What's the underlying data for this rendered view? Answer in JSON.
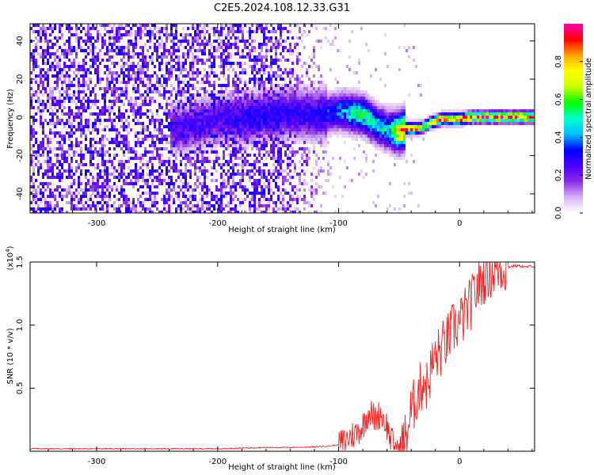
{
  "title": "C2E5.2024.108.12.33.G31",
  "chart_data": [
    {
      "type": "heatmap",
      "title": "C2E5.2024.108.12.33.G31",
      "xlabel": "Height of straight line (km)",
      "ylabel": "Frequency (Hz)",
      "xlim": [
        -355,
        62
      ],
      "ylim": [
        -50,
        49
      ],
      "xticks": [
        -300,
        -200,
        -100,
        0
      ],
      "xtick_labels": [
        "-300",
        "-200",
        "-100",
        "0"
      ],
      "yticks": [
        -40,
        -20,
        0,
        20,
        40
      ],
      "ytick_labels": [
        "-40",
        "-20",
        "0",
        "20",
        "40"
      ],
      "colorbar": {
        "label": "Normalized spectral amplitude",
        "ticks": [
          0.0,
          0.2,
          0.4,
          0.6,
          0.8
        ],
        "tick_labels": [
          "0.0",
          "0.2",
          "0.4",
          "0.6",
          "0.8"
        ],
        "range": [
          0,
          1
        ],
        "colormap": [
          "#ffffff",
          "#d8b4f8",
          "#8a2be2",
          "#4b00ff",
          "#0000ff",
          "#00bfff",
          "#00ffd0",
          "#00ff00",
          "#c8ff00",
          "#ffff00",
          "#ffa500",
          "#ff0000",
          "#ff00aa"
        ]
      },
      "trace": {
        "x": [
          -230,
          -200,
          -180,
          -160,
          -140,
          -120,
          -110,
          -100,
          -90,
          -80,
          -70,
          -60,
          -50,
          -45,
          -40,
          -35,
          -30,
          -25,
          -20,
          -15,
          -10,
          -5,
          0,
          10,
          20,
          30,
          40,
          50,
          60
        ],
        "y_hz": [
          -5,
          0,
          0,
          2,
          3,
          2,
          3,
          4,
          3,
          2,
          -3,
          -6,
          -7,
          -5,
          -5,
          -5,
          -4,
          -2,
          -1,
          0,
          0,
          0,
          0,
          1,
          1,
          1,
          1,
          1,
          1
        ],
        "amplitude": [
          0.25,
          0.25,
          0.3,
          0.3,
          0.3,
          0.3,
          0.35,
          0.4,
          0.5,
          0.55,
          0.5,
          0.45,
          0.85,
          0.9,
          0.9,
          0.8,
          0.7,
          0.75,
          0.85,
          0.9,
          0.9,
          0.85,
          0.9,
          0.9,
          0.92,
          0.9,
          0.9,
          0.92,
          0.9
        ]
      },
      "noise_floor": {
        "x_range": [
          -355,
          -105
        ],
        "amplitude": 0.3
      }
    },
    {
      "type": "line",
      "xlabel": "Height of straight line (km)",
      "ylabel": "SNR (10 * v/v)",
      "y_multiplier": "(x10^4)",
      "xlim": [
        -355,
        62
      ],
      "ylim": [
        0,
        1.5
      ],
      "xticks": [
        -300,
        -200,
        -100,
        0
      ],
      "xtick_labels": [
        "-300",
        "-200",
        "-100",
        "0"
      ],
      "yticks": [
        0.5,
        1.0,
        1.5
      ],
      "ytick_labels": [
        "0.5",
        "1.0",
        "1.5"
      ],
      "line_color": "#ee2222",
      "series": [
        {
          "x": [
            -355,
            -340,
            -320,
            -300,
            -280,
            -260,
            -240,
            -220,
            -200,
            -180,
            -160,
            -140,
            -120,
            -110,
            -100,
            -95,
            -90,
            -85,
            -80,
            -75,
            -70,
            -65,
            -60,
            -57,
            -55,
            -52,
            -50,
            -47,
            -45,
            -42,
            -40,
            -37,
            -35,
            -32,
            -30,
            -27,
            -25,
            -22,
            -20,
            -17,
            -15,
            -12,
            -10,
            -7,
            -5,
            -2,
            0,
            3,
            5,
            8,
            10,
            12,
            15,
            18,
            20,
            22,
            25,
            28,
            30,
            33,
            36,
            40,
            45,
            50,
            55,
            60,
            62
          ],
          "y": [
            0.02,
            0.02,
            0.02,
            0.02,
            0.02,
            0.02,
            0.02,
            0.02,
            0.02,
            0.025,
            0.03,
            0.03,
            0.035,
            0.04,
            0.05,
            0.08,
            0.12,
            0.15,
            0.2,
            0.32,
            0.26,
            0.3,
            0.2,
            0.1,
            0.06,
            0.04,
            0.03,
            0.06,
            0.1,
            0.22,
            0.32,
            0.38,
            0.46,
            0.5,
            0.58,
            0.52,
            0.6,
            0.7,
            0.74,
            0.78,
            0.8,
            0.86,
            0.88,
            0.94,
            0.98,
            1.0,
            1.02,
            1.06,
            1.1,
            1.15,
            1.18,
            1.24,
            1.3,
            1.34,
            1.38,
            1.4,
            1.42,
            1.43,
            1.44,
            1.45,
            1.46,
            1.46,
            1.47,
            1.47,
            1.46,
            1.47,
            1.46
          ]
        }
      ]
    }
  ]
}
